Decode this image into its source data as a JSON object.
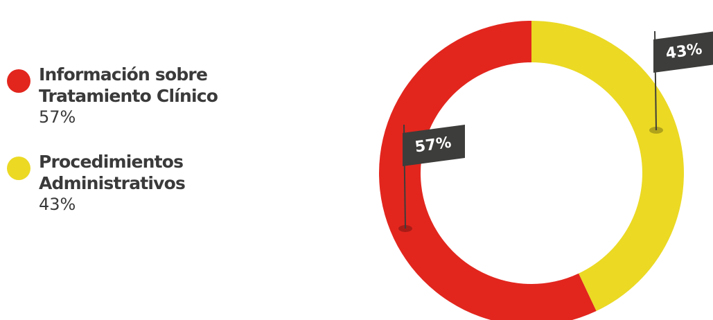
{
  "chart_data": {
    "type": "pie",
    "donut": true,
    "categories": [
      "Información sobre Tratamiento Clínico",
      "Procedimientos Administrativos"
    ],
    "values": [
      57,
      43
    ],
    "unit": "%",
    "colors": [
      "#e2261e",
      "#ebd924"
    ],
    "legend_position": "left",
    "data_labels": [
      "57%",
      "43%"
    ]
  },
  "legend": {
    "items": [
      {
        "label_line1": "Información sobre",
        "label_line2": "Tratamiento Clínico",
        "value_text": "57%",
        "color": "#e2261e"
      },
      {
        "label_line1": "Procedimientos",
        "label_line2": "Administrativos",
        "value_text": "43%",
        "color": "#ebd924"
      }
    ]
  },
  "flag_color": "#3d3d3b"
}
